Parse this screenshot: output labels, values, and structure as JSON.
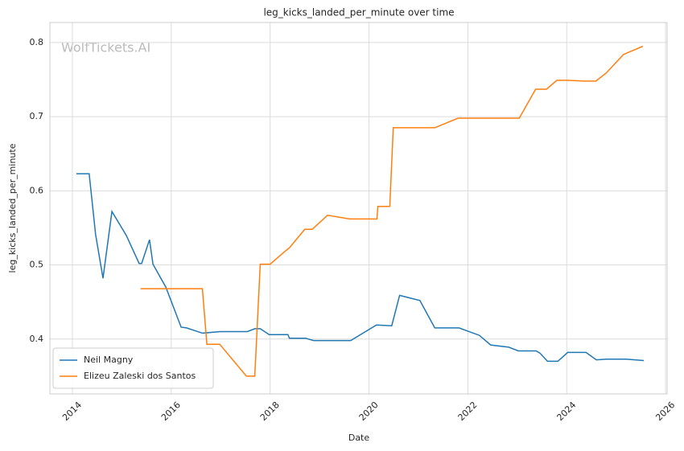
{
  "chart_data": {
    "type": "line",
    "title": "leg_kicks_landed_per_minute over time",
    "xlabel": "Date",
    "ylabel": "leg_kicks_landed_per_minute",
    "watermark": "WolfTickets.AI",
    "xlim": [
      2013.545,
      2026.03
    ],
    "xticks": [
      2014,
      2016,
      2018,
      2020,
      2022,
      2024,
      2026
    ],
    "ylim": [
      0.326,
      0.827
    ],
    "yticks": [
      0.4,
      0.5,
      0.6,
      0.7,
      0.8
    ],
    "grid": true,
    "legend": "lower left",
    "series": [
      {
        "name": "Neil Magny",
        "color": "#1f77b4",
        "x": [
          2014.08,
          2014.34,
          2014.47,
          2014.62,
          2014.8,
          2015.09,
          2015.35,
          2015.4,
          2015.56,
          2015.63,
          2015.89,
          2016.2,
          2016.31,
          2016.63,
          2016.99,
          2017.54,
          2017.69,
          2017.8,
          2017.98,
          2018.36,
          2018.39,
          2018.72,
          2018.88,
          2019.63,
          2020.15,
          2020.46,
          2020.62,
          2021.03,
          2021.33,
          2021.82,
          2022.23,
          2022.46,
          2022.83,
          2023.02,
          2023.38,
          2023.46,
          2023.61,
          2023.82,
          2024.02,
          2024.39,
          2024.6,
          2024.81,
          2025.2,
          2025.56
        ],
        "values": [
          0.623,
          0.623,
          0.541,
          0.482,
          0.572,
          0.54,
          0.502,
          0.502,
          0.534,
          0.501,
          0.47,
          0.416,
          0.415,
          0.408,
          0.41,
          0.41,
          0.414,
          0.414,
          0.406,
          0.406,
          0.401,
          0.401,
          0.398,
          0.398,
          0.419,
          0.418,
          0.459,
          0.452,
          0.415,
          0.415,
          0.405,
          0.392,
          0.389,
          0.384,
          0.384,
          0.381,
          0.37,
          0.37,
          0.382,
          0.382,
          0.372,
          0.373,
          0.373,
          0.371
        ]
      },
      {
        "name": "Elizeu Zaleski dos Santos",
        "color": "#ff7f0e",
        "x": [
          2015.38,
          2016.63,
          2016.72,
          2016.98,
          2017.52,
          2017.69,
          2017.8,
          2018.0,
          2018.33,
          2018.39,
          2018.7,
          2018.85,
          2019.16,
          2019.61,
          2020.16,
          2020.18,
          2020.42,
          2020.49,
          2021.33,
          2021.8,
          2023.04,
          2023.37,
          2023.59,
          2023.8,
          2024.0,
          2024.37,
          2024.59,
          2024.8,
          2025.15,
          2025.54
        ],
        "values": [
          0.468,
          0.468,
          0.393,
          0.393,
          0.35,
          0.35,
          0.501,
          0.501,
          0.52,
          0.523,
          0.548,
          0.548,
          0.567,
          0.562,
          0.562,
          0.579,
          0.579,
          0.685,
          0.685,
          0.698,
          0.698,
          0.737,
          0.737,
          0.749,
          0.749,
          0.748,
          0.748,
          0.759,
          0.784,
          0.795
        ]
      }
    ]
  }
}
